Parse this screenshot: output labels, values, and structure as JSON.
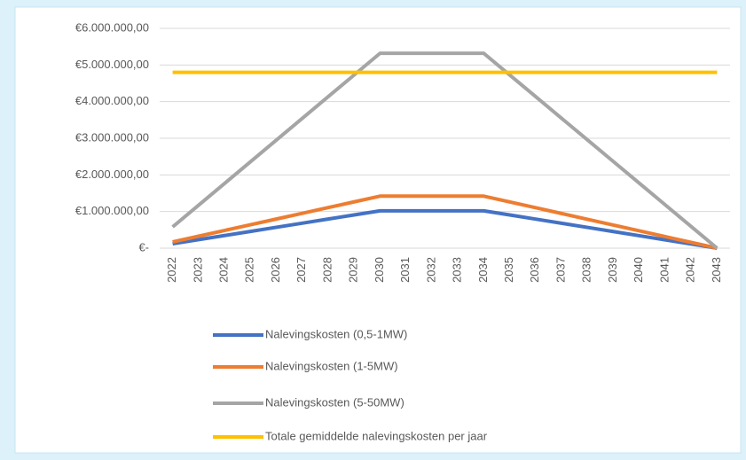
{
  "chart_data": {
    "type": "line",
    "categories": [
      "2022",
      "2023",
      "2024",
      "2025",
      "2026",
      "2027",
      "2028",
      "2029",
      "2030",
      "2031",
      "2032",
      "2033",
      "2034",
      "2035",
      "2036",
      "2037",
      "2038",
      "2039",
      "2040",
      "2041",
      "2042",
      "2043"
    ],
    "series": [
      {
        "name": "Nalevingskosten (0,5-1MW)",
        "color": "#4472c4",
        "values": [
          120000,
          232500,
          345000,
          457500,
          570000,
          682500,
          795000,
          907500,
          1020000,
          1020000,
          1020000,
          1020000,
          1020000,
          906667,
          793333,
          680000,
          566667,
          453333,
          340000,
          226667,
          113333,
          0
        ]
      },
      {
        "name": "Nalevingskosten (1-5MW)",
        "color": "#ed7d31",
        "values": [
          170000,
          326250,
          482500,
          638750,
          795000,
          951250,
          1107500,
          1263750,
          1420000,
          1420000,
          1420000,
          1420000,
          1420000,
          1262222,
          1104444,
          946667,
          788889,
          631111,
          473333,
          315556,
          157778,
          0
        ]
      },
      {
        "name": "Nalevingskosten (5-50MW)",
        "color": "#a5a5a5",
        "values": [
          580000,
          1172500,
          1765000,
          2357500,
          2950000,
          3542500,
          4135000,
          4727500,
          5320000,
          5320000,
          5320000,
          5320000,
          5320000,
          4728889,
          4137778,
          3546667,
          2955556,
          2364444,
          1773333,
          1182222,
          591111,
          0
        ]
      },
      {
        "name": "Totale gemiddelde nalevingskosten per jaar",
        "color": "#ffc000",
        "values": [
          4800000,
          4800000,
          4800000,
          4800000,
          4800000,
          4800000,
          4800000,
          4800000,
          4800000,
          4800000,
          4800000,
          4800000,
          4800000,
          4800000,
          4800000,
          4800000,
          4800000,
          4800000,
          4800000,
          4800000,
          4800000,
          4800000
        ]
      }
    ],
    "ylim": [
      0,
      6000000
    ],
    "yticks": [
      {
        "value": 0,
        "label": "€-"
      },
      {
        "value": 1000000,
        "label": "€1.000.000,00"
      },
      {
        "value": 2000000,
        "label": "€2.000.000,00"
      },
      {
        "value": 3000000,
        "label": "€3.000.000,00"
      },
      {
        "value": 4000000,
        "label": "€4.000.000,00"
      },
      {
        "value": 5000000,
        "label": "€5.000.000,00"
      },
      {
        "value": 6000000,
        "label": "€6.000.000,00"
      }
    ],
    "grid": true,
    "legend": "bottom"
  }
}
